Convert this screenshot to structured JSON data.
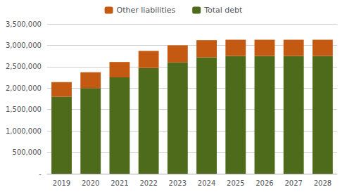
{
  "chart_data": {
    "type": "bar",
    "categories": [
      "2019",
      "2020",
      "2021",
      "2022",
      "2023",
      "2024",
      "2025",
      "2026",
      "2027",
      "2028"
    ],
    "series": [
      {
        "name": "Total debt",
        "color": "#4d6b1a",
        "values": [
          1800000,
          2000000,
          2250000,
          2470000,
          2600000,
          2720000,
          2750000,
          2750000,
          2750000,
          2750000
        ]
      },
      {
        "name": "Other liabilities",
        "color": "#c45911",
        "values": [
          340000,
          370000,
          360000,
          400000,
          400000,
          400000,
          380000,
          380000,
          380000,
          380000
        ]
      }
    ],
    "stacked": true,
    "ylim": [
      0,
      3500000
    ],
    "yticks": [
      {
        "value": 0,
        "label": "-"
      },
      {
        "value": 500000,
        "label": "500,000"
      },
      {
        "value": 1000000,
        "label": "1,000,000"
      },
      {
        "value": 1500000,
        "label": "1,500,000"
      },
      {
        "value": 2000000,
        "label": "2,000,000"
      },
      {
        "value": 2500000,
        "label": "2,500,000"
      },
      {
        "value": 3000000,
        "label": "3,000,000"
      },
      {
        "value": 3500000,
        "label": "3,500,000"
      }
    ],
    "grid": true,
    "legend": "top"
  }
}
